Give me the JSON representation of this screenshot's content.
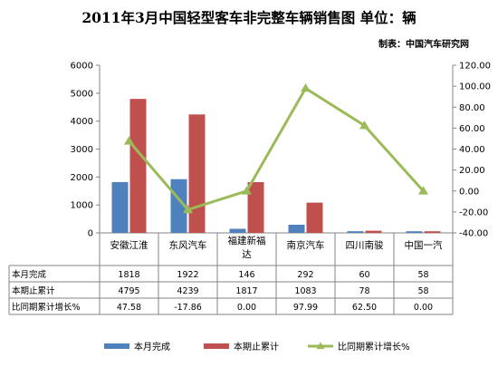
{
  "title": "2011年3月中国轻型客车非完整车辆销售图 单位：辆",
  "source": "制表：中国汽车研究网",
  "colors": {
    "bar1": "#4f81bd",
    "bar2": "#c0504d",
    "line": "#9bbb59",
    "axis": "#868686",
    "grid": "#d9d9d9"
  },
  "chart_data": {
    "type": "bar",
    "categories": [
      "安徽江淮",
      "东风汽车",
      "福建新福达",
      "南京汽车",
      "四川南骏",
      "中国一汽"
    ],
    "category_lines": [
      [
        "安徽江淮"
      ],
      [
        "东风汽车"
      ],
      [
        "福建新福",
        "达"
      ],
      [
        "南京汽车"
      ],
      [
        "四川南骏"
      ],
      [
        "中国一汽"
      ]
    ],
    "series": [
      {
        "name": "本月完成",
        "type": "bar",
        "axis": "left",
        "values": [
          1818,
          1922,
          146,
          292,
          60,
          58
        ],
        "labels": [
          "1818",
          "1922",
          "146",
          "292",
          "60",
          "58"
        ]
      },
      {
        "name": "本期止累计",
        "type": "bar",
        "axis": "left",
        "values": [
          4795,
          4239,
          1817,
          1083,
          78,
          58
        ],
        "labels": [
          "4795",
          "4239",
          "1817",
          "1083",
          "78",
          "58"
        ]
      },
      {
        "name": "比同期累计增长%",
        "type": "line",
        "axis": "right",
        "values": [
          47.58,
          -17.86,
          0.0,
          97.99,
          62.5,
          0.0
        ],
        "labels": [
          "47.58",
          "-17.86",
          "0.00",
          "97.99",
          "62.50",
          "0.00"
        ]
      }
    ],
    "y_left": {
      "min": 0,
      "max": 6000,
      "ticks": [
        "0",
        "1000",
        "2000",
        "3000",
        "4000",
        "5000",
        "6000"
      ]
    },
    "y_right": {
      "min": -40,
      "max": 120,
      "ticks": [
        "-40.00",
        "-20.00",
        "0.00",
        "20.00",
        "40.00",
        "60.00",
        "80.00",
        "100.00",
        "120.00"
      ]
    },
    "legend_position": "bottom",
    "grid": false
  }
}
